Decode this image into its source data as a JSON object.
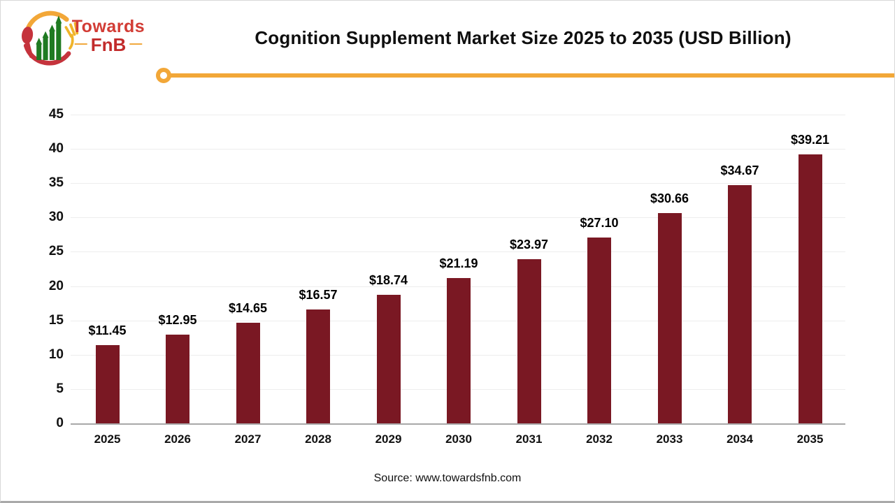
{
  "logo": {
    "brand_top": "Towards",
    "brand_bottom": "FnB",
    "dash": "—"
  },
  "header": {
    "title": "Cognition Supplement Market Size 2025 to 2035 (USD Billion)"
  },
  "footer": {
    "source": "Source: www.towardsfnb.com"
  },
  "colors": {
    "bar": "#7a1823",
    "accent_orange": "#f2a738",
    "brand_red": "#c22b2b",
    "grid": "#ededed",
    "axis_line": "#a8a8a8",
    "label_text": "#111111"
  },
  "chart_data": {
    "type": "bar",
    "title": "Cognition Supplement Market Size 2025 to 2035 (USD Billion)",
    "categories": [
      "2025",
      "2026",
      "2027",
      "2028",
      "2029",
      "2030",
      "2031",
      "2032",
      "2033",
      "2034",
      "2035"
    ],
    "values": [
      11.45,
      12.95,
      14.65,
      16.57,
      18.74,
      21.19,
      23.97,
      27.1,
      30.66,
      34.67,
      39.21
    ],
    "value_labels": [
      "$11.45",
      "$12.95",
      "$14.65",
      "$16.57",
      "$18.74",
      "$21.19",
      "$23.97",
      "$27.10",
      "$30.66",
      "$34.67",
      "$39.21"
    ],
    "xlabel": "",
    "ylabel": "",
    "ylim": [
      0,
      45
    ],
    "yticks": [
      0,
      5,
      10,
      15,
      20,
      25,
      30,
      35,
      40,
      45
    ],
    "grid": true,
    "legend": false,
    "bar_color": "#7a1823",
    "source": "Source: www.towardsfnb.com"
  }
}
